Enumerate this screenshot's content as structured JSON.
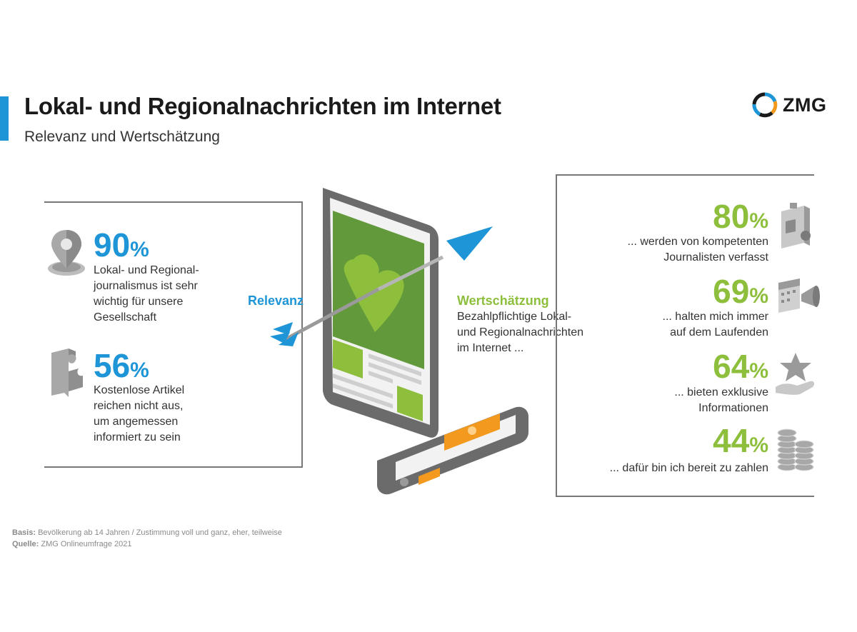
{
  "header": {
    "title": "Lokal- und Regionalnachrichten im Internet",
    "subtitle": "Relevanz und Wertschätzung",
    "logo_text": "ZMG"
  },
  "colors": {
    "accent_blue": "#1e95d6",
    "accent_green": "#8dbf3d",
    "orange": "#f39a1e"
  },
  "left_stats": [
    {
      "number": "90",
      "unit": "%",
      "text": [
        "Lokal- und Regional-",
        "journalismus ist sehr",
        "wichtig für unsere",
        "Gesellschaft"
      ],
      "icon": "location-pin-gear-icon"
    },
    {
      "number": "56",
      "unit": "%",
      "text": [
        "Kostenlose Artikel",
        "reichen nicht aus,",
        "um angemessen",
        "informiert zu sein"
      ],
      "icon": "puzzle-piece-icon"
    }
  ],
  "center": {
    "relevanz_label": "Relevanz",
    "wert_label": "Wertschätzung",
    "wert_text": [
      "Bezahlpflichtige Lokal-",
      "und Regionalnachrichten",
      "im Internet ..."
    ]
  },
  "right_stats": [
    {
      "number": "80",
      "unit": "%",
      "text": [
        "... werden von kompetenten",
        "Journalisten verfasst"
      ],
      "icon": "press-id-card-icon"
    },
    {
      "number": "69",
      "unit": "%",
      "text": [
        "... halten mich immer",
        "auf dem Laufenden"
      ],
      "icon": "calendar-megaphone-icon"
    },
    {
      "number": "64",
      "unit": "%",
      "text": [
        "... bieten exklusive",
        "Informationen"
      ],
      "icon": "hand-star-icon"
    },
    {
      "number": "44",
      "unit": "%",
      "text": [
        "... dafür bin ich bereit zu zahlen"
      ],
      "icon": "coin-stacks-icon"
    }
  ],
  "footer": {
    "basis_label": "Basis:",
    "basis_text": "Bevölkerung ab 14 Jahren / Zustimmung voll und ganz, eher, teilweise",
    "quelle_label": "Quelle:",
    "quelle_text": "ZMG Onlineumfrage 2021"
  }
}
